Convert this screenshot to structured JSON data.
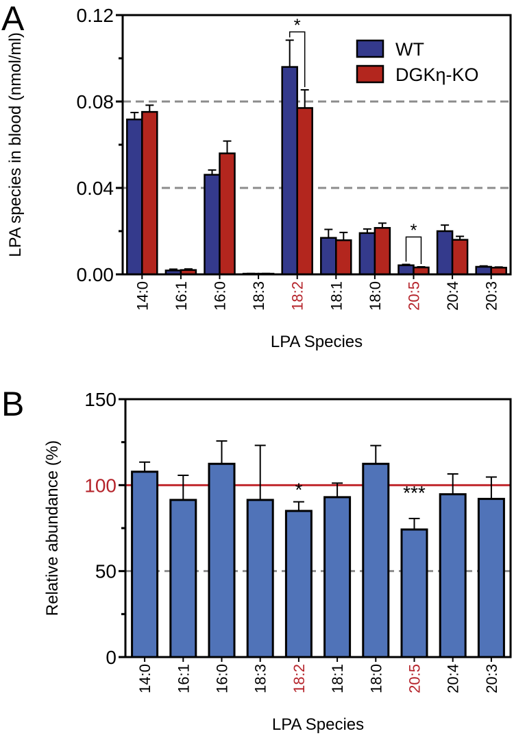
{
  "chart_data": [
    {
      "panel_label": "A",
      "type": "bar",
      "xlabel": "LPA Species",
      "ylabel": "LPA species in blood (nmol/ml)",
      "ylim": [
        0,
        0.12
      ],
      "yticks": [
        "0.00",
        "0.04",
        "0.08",
        "0.12"
      ],
      "ytick_values": [
        0,
        0.04,
        0.08,
        0.12
      ],
      "gridlines_dashed": [
        0.04,
        0.08
      ],
      "categories": [
        "14:0",
        "16:1",
        "16:0",
        "18:3",
        "18:2",
        "18:1",
        "18:0",
        "20:5",
        "20:4",
        "20:3"
      ],
      "highlight_categories": [
        "18:2",
        "20:5"
      ],
      "legend_position": "top-right",
      "series": [
        {
          "name": "WT",
          "color": "#343a8c",
          "values": [
            0.0717,
            0.0018,
            0.0461,
            0.0003,
            0.096,
            0.0169,
            0.0191,
            0.0042,
            0.02,
            0.0035
          ],
          "errors": [
            0.0032,
            0.0006,
            0.0022,
            0.0001,
            0.0124,
            0.0039,
            0.0019,
            0.0004,
            0.0028,
            0.0004
          ]
        },
        {
          "name": "DGKη-KO",
          "color": "#b3261e",
          "values": [
            0.0752,
            0.002,
            0.056,
            0.0003,
            0.077,
            0.0158,
            0.0215,
            0.0032,
            0.016,
            0.0031
          ],
          "errors": [
            0.0031,
            0.0005,
            0.0057,
            0.0001,
            0.0084,
            0.0036,
            0.0022,
            0.0003,
            0.0016,
            0.0003
          ]
        }
      ],
      "annotations": [
        {
          "category": "18:2",
          "text": "*",
          "type": "bracket"
        },
        {
          "category": "20:5",
          "text": "*",
          "type": "bracket"
        }
      ]
    },
    {
      "panel_label": "B",
      "type": "bar",
      "xlabel": "LPA Species",
      "ylabel": "Relative abundance (%)",
      "ylim": [
        0,
        150
      ],
      "yticks": [
        "0",
        "50",
        "100",
        "150"
      ],
      "ytick_values": [
        0,
        50,
        100,
        150
      ],
      "reference_line": 100,
      "reference_color": "#c0272d",
      "gridlines_dashed": [
        50
      ],
      "categories": [
        "14:0",
        "16:1",
        "16:0",
        "18:3",
        "18:2",
        "18:1",
        "18:0",
        "20:5",
        "20:4",
        "20:3"
      ],
      "highlight_categories": [
        "18:2",
        "20:5"
      ],
      "bar_color": "#5073b8",
      "values": [
        107.8,
        91.4,
        112.4,
        91.4,
        85.0,
        93.0,
        112.4,
        74.2,
        94.7,
        92.0
      ],
      "errors": [
        5.6,
        14.3,
        13.3,
        31.7,
        5.3,
        8.2,
        10.6,
        6.4,
        11.8,
        12.7
      ],
      "annotations": [
        {
          "category": "18:2",
          "text": "*"
        },
        {
          "category": "20:5",
          "text": "***"
        }
      ]
    }
  ]
}
